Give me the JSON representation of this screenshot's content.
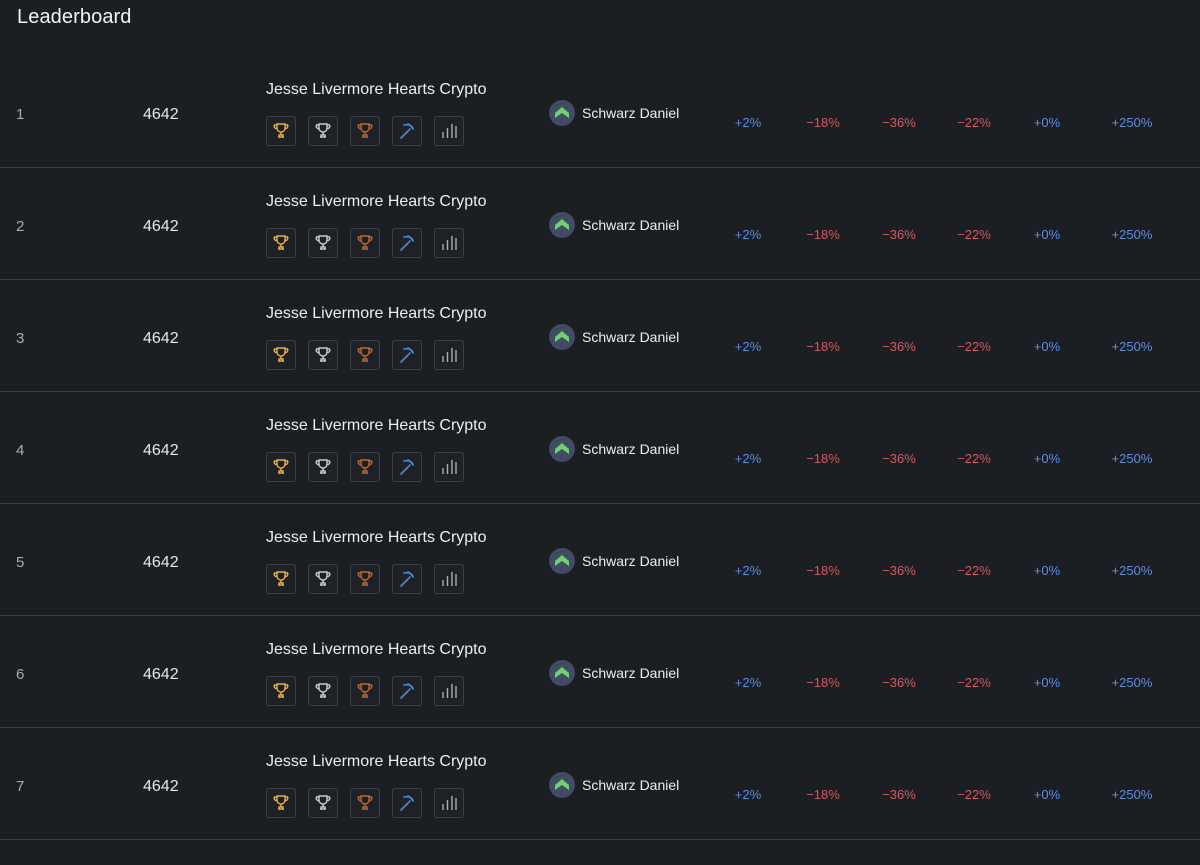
{
  "header": {
    "title": "Leaderboard"
  },
  "colors": {
    "gold": "#e3b43b",
    "silver": "#c9ccd1",
    "bronze": "#b46a3a",
    "mining": "#4f86e6",
    "chart": "#a9adb3",
    "positive": "#5b8fe0",
    "negative": "#d25a5f",
    "avatar_bg": "#434a63",
    "avatar_mark": "#6fd16f"
  },
  "rows": [
    {
      "rank": "1",
      "score": "4642",
      "strategy": "Jesse Livermore Hearts Crypto",
      "user": "Schwarz Daniel",
      "returns": [
        "+2%",
        "−18%",
        "−36%",
        "−22%",
        "+0%",
        "+250%"
      ]
    },
    {
      "rank": "2",
      "score": "4642",
      "strategy": "Jesse Livermore Hearts Crypto",
      "user": "Schwarz Daniel",
      "returns": [
        "+2%",
        "−18%",
        "−36%",
        "−22%",
        "+0%",
        "+250%"
      ]
    },
    {
      "rank": "3",
      "score": "4642",
      "strategy": "Jesse Livermore Hearts Crypto",
      "user": "Schwarz Daniel",
      "returns": [
        "+2%",
        "−18%",
        "−36%",
        "−22%",
        "+0%",
        "+250%"
      ]
    },
    {
      "rank": "4",
      "score": "4642",
      "strategy": "Jesse Livermore Hearts Crypto",
      "user": "Schwarz Daniel",
      "returns": [
        "+2%",
        "−18%",
        "−36%",
        "−22%",
        "+0%",
        "+250%"
      ]
    },
    {
      "rank": "5",
      "score": "4642",
      "strategy": "Jesse Livermore Hearts Crypto",
      "user": "Schwarz Daniel",
      "returns": [
        "+2%",
        "−18%",
        "−36%",
        "−22%",
        "+0%",
        "+250%"
      ]
    },
    {
      "rank": "6",
      "score": "4642",
      "strategy": "Jesse Livermore Hearts Crypto",
      "user": "Schwarz Daniel",
      "returns": [
        "+2%",
        "−18%",
        "−36%",
        "−22%",
        "+0%",
        "+250%"
      ]
    },
    {
      "rank": "7",
      "score": "4642",
      "strategy": "Jesse Livermore Hearts Crypto",
      "user": "Schwarz Daniel",
      "returns": [
        "+2%",
        "−18%",
        "−36%",
        "−22%",
        "+0%",
        "+250%"
      ]
    }
  ]
}
